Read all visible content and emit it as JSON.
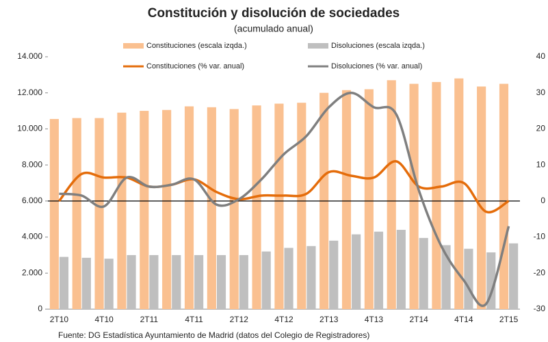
{
  "chart_data": {
    "type": "bar-line",
    "title": "Constitución y disolución de sociedades",
    "subtitle": "(acumulado anual)",
    "source": "Fuente: DG Estadística Ayuntamiento de Madrid (datos del Colegio de Registradores)",
    "categories": [
      "2T10",
      null,
      "4T10",
      null,
      "2T11",
      null,
      "4T11",
      null,
      "2T12",
      null,
      "4T12",
      null,
      "2T13",
      null,
      "4T13",
      null,
      "2T14",
      null,
      "4T14",
      null,
      "2T15"
    ],
    "series": [
      {
        "name": "Constituciones (escala izqda.)",
        "kind": "bar",
        "color": "#fac090",
        "axis": "y",
        "values": [
          10550,
          10600,
          10600,
          10900,
          11000,
          11050,
          11250,
          11200,
          11100,
          11300,
          11400,
          11450,
          12000,
          12150,
          12200,
          12700,
          12500,
          12600,
          12800,
          12350,
          12500
        ]
      },
      {
        "name": "Disoluciones (escala izqda.)",
        "kind": "bar",
        "color": "#bfbfbf",
        "axis": "y",
        "values": [
          2900,
          2850,
          2800,
          3000,
          3000,
          3000,
          3000,
          3000,
          3000,
          3200,
          3400,
          3500,
          3800,
          4150,
          4300,
          4400,
          3950,
          3550,
          3350,
          3150,
          3650
        ]
      },
      {
        "name": "Constituciones (% var. anual)",
        "kind": "line",
        "color": "#e46c0a",
        "axis": "y2",
        "values": [
          0,
          7.5,
          6.5,
          6.5,
          4,
          4.5,
          6,
          2.5,
          0.5,
          1.5,
          1.5,
          2,
          8,
          7,
          6.5,
          11,
          4,
          4,
          5,
          -3,
          0
        ]
      },
      {
        "name": "Disoluciones (% var. anual)",
        "kind": "line",
        "color": "#7f7f7f",
        "axis": "y2",
        "values": [
          2,
          1.5,
          -1.5,
          6.5,
          4,
          4.5,
          6,
          -1,
          0.5,
          6,
          13,
          18,
          26,
          30,
          26,
          24,
          3,
          -12.5,
          -22,
          -28.5,
          -7
        ]
      }
    ],
    "ylim": [
      0,
      14000
    ],
    "yticks": [
      0,
      {
        "value": 2000,
        "label": "2.000"
      },
      {
        "value": 4000,
        "label": "4.000"
      },
      {
        "value": 6000,
        "label": "6.000"
      },
      {
        "value": 8000,
        "label": "8.000"
      },
      {
        "value": 10000,
        "label": "10.000"
      },
      {
        "value": 12000,
        "label": "12.000"
      },
      {
        "value": 14000,
        "label": "14.000"
      }
    ],
    "y2lim": [
      -30,
      40
    ],
    "y2ticks": [
      -30,
      -20,
      -10,
      0,
      10,
      20,
      30,
      40
    ],
    "y2_reference_line": 0
  }
}
